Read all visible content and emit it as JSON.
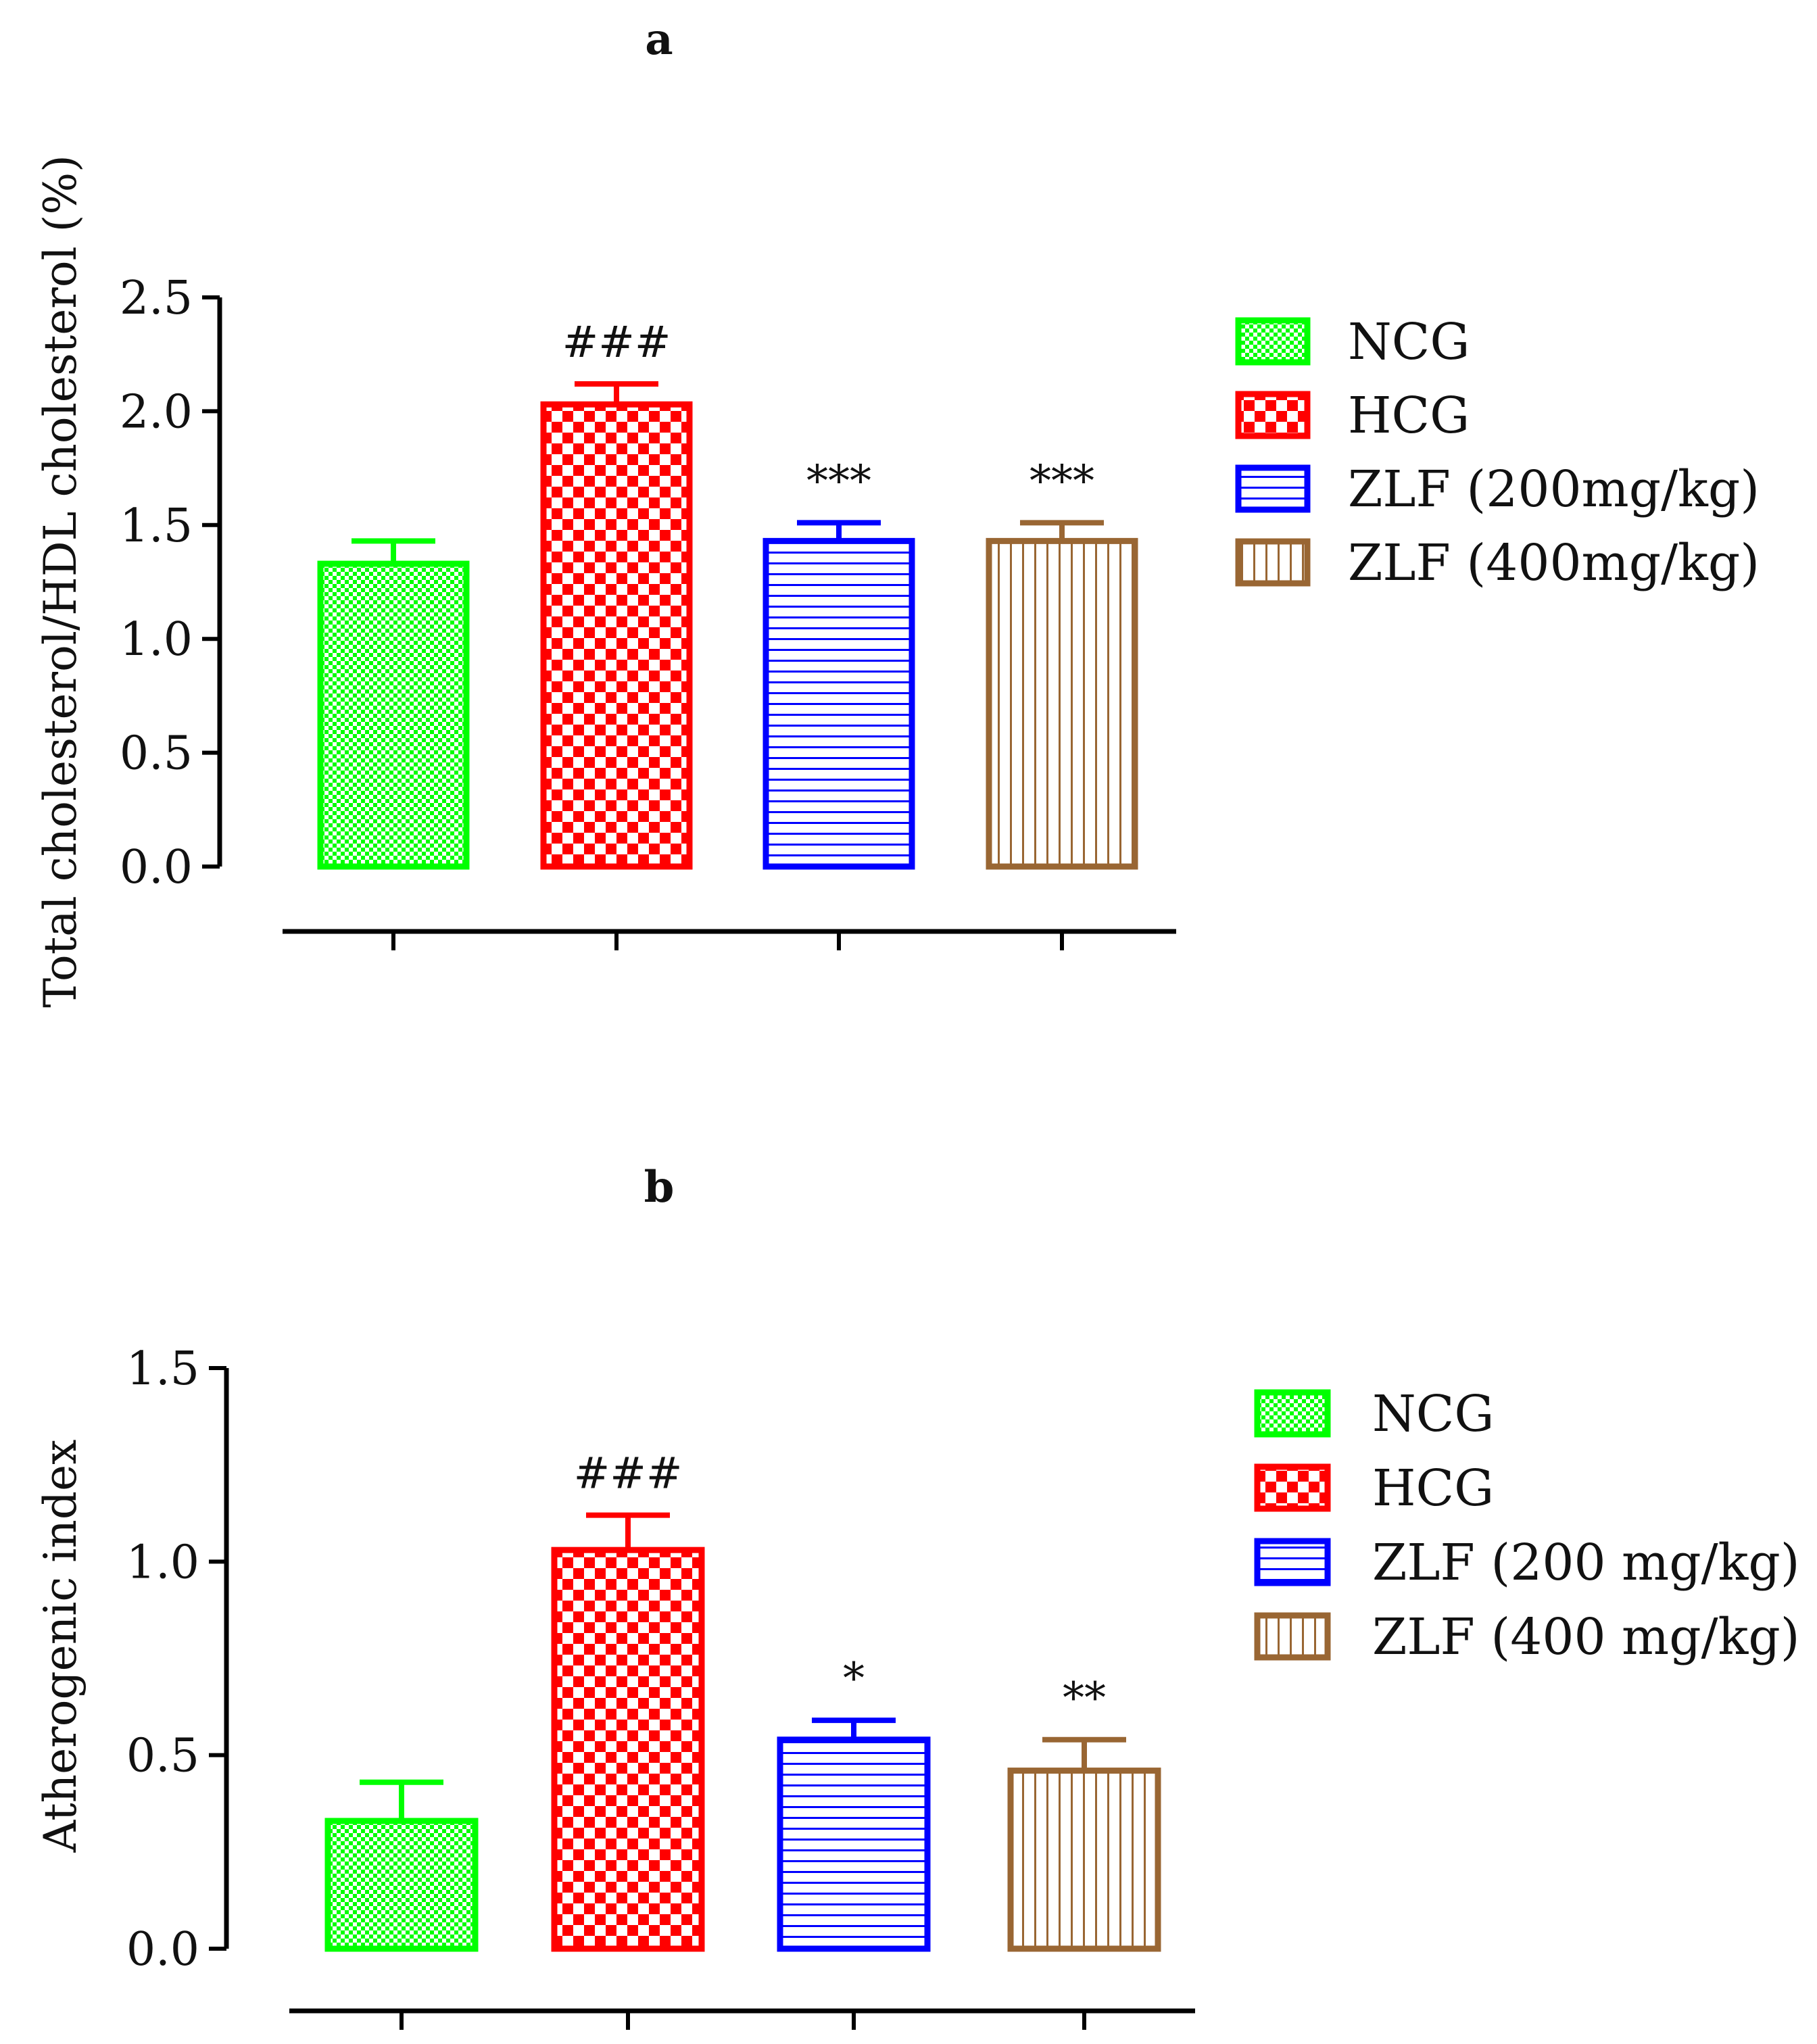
{
  "colors": {
    "NCG": "#00ff00",
    "HCG": "#ff0000",
    "ZLF200": "#0000ff",
    "ZLF400": "#996633",
    "axis": "#000000"
  },
  "chart_data": [
    {
      "type": "bar",
      "title": "a",
      "ylabel": "Total cholesterol/HDL cholesterol (%)",
      "xlabel": "",
      "ylim": [
        0,
        2.5
      ],
      "yticks": [
        "0.0",
        "0.5",
        "1.0",
        "1.5",
        "2.0",
        "2.5"
      ],
      "categories": [
        "NCG",
        "HCG",
        "ZLF (200mg/kg)",
        "ZLF (400mg/kg)"
      ],
      "values": [
        1.33,
        2.03,
        1.43,
        1.43
      ],
      "errors": [
        0.1,
        0.09,
        0.08,
        0.08
      ],
      "annotations": [
        "",
        "###",
        "***",
        "***"
      ],
      "patterns": [
        "fine-check",
        "coarse-check",
        "horizontal",
        "vertical"
      ],
      "legend": [
        "NCG",
        "HCG",
        "ZLF (200mg/kg)",
        "ZLF (400mg/kg)"
      ],
      "legend_position": "right"
    },
    {
      "type": "bar",
      "title": "b",
      "ylabel": "Atherogenic index",
      "xlabel": "",
      "ylim": [
        0,
        1.5
      ],
      "yticks": [
        "0.0",
        "0.5",
        "1.0",
        "1.5"
      ],
      "categories": [
        "NCG",
        "HCG",
        "ZLF (200 mg/kg)",
        "ZLF (400 mg/kg)"
      ],
      "values": [
        0.33,
        1.03,
        0.54,
        0.46
      ],
      "errors": [
        0.1,
        0.09,
        0.05,
        0.08
      ],
      "annotations": [
        "",
        "###",
        "*",
        "**"
      ],
      "patterns": [
        "fine-check",
        "coarse-check",
        "horizontal",
        "vertical"
      ],
      "legend": [
        "NCG",
        "HCG",
        "ZLF (200 mg/kg)",
        "ZLF (400 mg/kg)"
      ],
      "legend_position": "right"
    }
  ]
}
